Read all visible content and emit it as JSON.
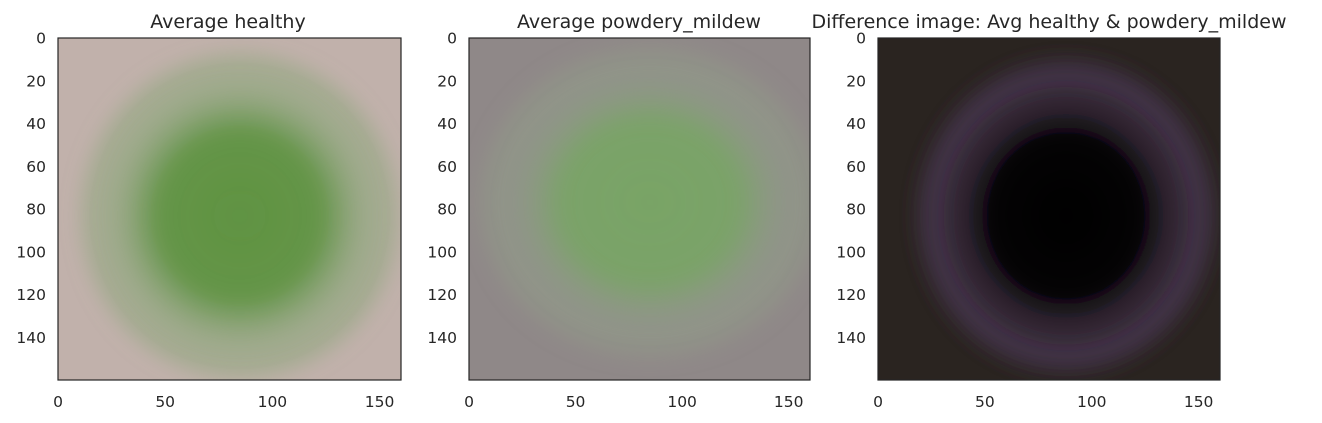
{
  "figure": {
    "background": "#ffffff",
    "text_color": "#262626"
  },
  "chart_data": [
    {
      "type": "image",
      "title": "Average healthy",
      "xlim": [
        0,
        160
      ],
      "ylim": [
        160,
        0
      ],
      "x_ticks": [
        0,
        50,
        100,
        150
      ],
      "y_ticks": [
        0,
        20,
        40,
        60,
        80,
        100,
        120,
        140
      ],
      "grid": false,
      "colors": {
        "background": "#c1b1ab",
        "leaf": "#5f9342",
        "leaf_halo": "#8aa57a"
      }
    },
    {
      "type": "image",
      "title": "Average powdery_mildew",
      "xlim": [
        0,
        160
      ],
      "ylim": [
        160,
        0
      ],
      "x_ticks": [
        0,
        50,
        100,
        150
      ],
      "y_ticks": [
        0,
        20,
        40,
        60,
        80,
        100,
        120,
        140
      ],
      "grid": false,
      "colors": {
        "background": "#8f8888",
        "leaf": "#79a466",
        "leaf_halo": "#919c88"
      }
    },
    {
      "type": "image",
      "title": "Difference image: Avg healthy & powdery_mildew",
      "xlim": [
        0,
        160
      ],
      "ylim": [
        160,
        0
      ],
      "x_ticks": [
        0,
        50,
        100,
        150
      ],
      "y_ticks": [
        0,
        20,
        40,
        60,
        80,
        100,
        120,
        140
      ],
      "grid": false,
      "colors": {
        "background": "#2a2420",
        "leaf": "#050305",
        "leaf_halo": "#3e2f48",
        "accent": "#6a4f7f"
      }
    }
  ]
}
